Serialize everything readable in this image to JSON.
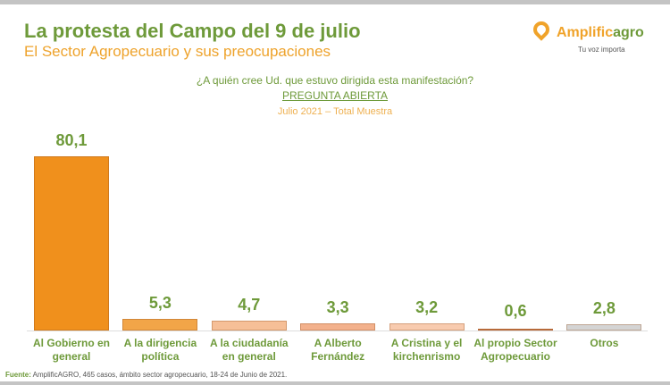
{
  "header": {
    "title": "La protesta del Campo del 9 de julio",
    "subtitle": "El Sector Agropecuario y sus preocupaciones"
  },
  "logo": {
    "name_a": "Amplific",
    "name_b": "agro",
    "tagline": "Tu voz importa",
    "color_a": "#f0a32a",
    "color_b": "#6e9a3a"
  },
  "chart_data": {
    "type": "bar",
    "title": "¿A quién cree Ud. que estuvo dirigida esta manifestación?",
    "subtitle": "PREGUNTA ABIERTA",
    "note": "Julio 2021 – Total Muestra",
    "categories": [
      "Al Gobierno en general",
      "A la dirigencia política",
      "A la ciudadanía en general",
      "A Alberto Fernández",
      "A Cristina y el kirchenrismo",
      "Al propio Sector Agropecuario",
      "Otros"
    ],
    "values": [
      80.1,
      5.3,
      4.7,
      3.3,
      3.2,
      0.6,
      2.8
    ],
    "labels": [
      "80,1",
      "5,3",
      "4,7",
      "3,3",
      "3,2",
      "0,6",
      "2,8"
    ],
    "colors": [
      "#f0901c",
      "#f2a548",
      "#f6bf97",
      "#f3b18c",
      "#f8cbaf",
      "#c9784a",
      "#d4d4d4"
    ],
    "ylim": [
      0,
      85
    ]
  },
  "footer": {
    "source_label": "Fuente:",
    "source_text": " AmplificAGRO, 465 casos, ámbito sector agropecuario, 18-24 de Junio de 2021."
  }
}
